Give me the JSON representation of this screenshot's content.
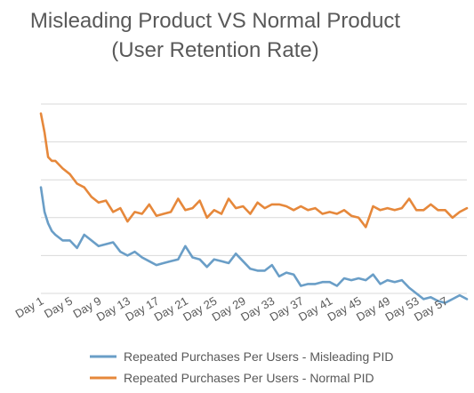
{
  "chart_data": {
    "type": "line",
    "title_lines": [
      "Misleading Product VS Normal Product",
      "(User Retention Rate)"
    ],
    "xlabel": "",
    "ylabel": "",
    "x_tick_labels": [
      "Day 1",
      "Day 5",
      "Day 9",
      "Day 13",
      "Day 17",
      "Day 21",
      "Day 25",
      "Day 29",
      "Day 33",
      "Day 37",
      "Day 41",
      "Day 45",
      "Day 49",
      "Day 53",
      "Day 57"
    ],
    "x_tick_days": [
      1,
      5,
      9,
      13,
      17,
      21,
      25,
      29,
      33,
      37,
      41,
      45,
      49,
      53,
      57
    ],
    "x_range": [
      1,
      60
    ],
    "ylim": [
      0,
      100
    ],
    "gridlines": [
      0,
      20,
      40,
      60,
      80,
      100
    ],
    "y_tick_labels_shown": false,
    "legend_position": "bottom",
    "series": [
      {
        "name": "Repeated Purchases Per Users - Misleading PID",
        "color": "#6a9ec7",
        "x": [
          1,
          1.5,
          2,
          2.5,
          3,
          4,
          5,
          6,
          7,
          8,
          9,
          10,
          11,
          12,
          13,
          14,
          15,
          16,
          17,
          18,
          19,
          20,
          21,
          22,
          23,
          24,
          25,
          26,
          27,
          28,
          29,
          30,
          31,
          32,
          33,
          34,
          35,
          36,
          37,
          38,
          39,
          40,
          41,
          42,
          43,
          44,
          45,
          46,
          47,
          48,
          49,
          50,
          51,
          52,
          53,
          54,
          55,
          56,
          57,
          58,
          59,
          60
        ],
        "y": [
          56,
          43,
          37,
          33,
          31,
          28,
          28,
          24,
          31,
          28,
          25,
          26,
          27,
          22,
          20,
          22,
          19,
          17,
          15,
          16,
          17,
          18,
          25,
          19,
          18,
          14,
          18,
          17,
          16,
          21,
          17,
          13,
          12,
          12,
          15,
          9,
          11,
          10,
          4,
          5,
          5,
          6,
          6,
          4,
          8,
          7,
          8,
          7,
          10,
          5,
          7,
          6,
          7,
          3,
          0,
          -3,
          -2,
          -4,
          -5,
          -3,
          -1,
          -3
        ]
      },
      {
        "name": "Repeated Purchases Per Users - Normal PID",
        "color": "#e6883b",
        "x": [
          1,
          1.5,
          2,
          2.5,
          3,
          4,
          5,
          6,
          7,
          8,
          9,
          10,
          11,
          12,
          13,
          14,
          15,
          16,
          17,
          18,
          19,
          20,
          21,
          22,
          23,
          24,
          25,
          26,
          27,
          28,
          29,
          30,
          31,
          32,
          33,
          34,
          35,
          36,
          37,
          38,
          39,
          40,
          41,
          42,
          43,
          44,
          45,
          46,
          47,
          48,
          49,
          50,
          51,
          52,
          53,
          54,
          55,
          56,
          57,
          58,
          59,
          60
        ],
        "y": [
          95,
          85,
          72,
          70,
          70,
          66,
          63,
          58,
          56,
          51,
          48,
          49,
          43,
          45,
          38,
          43,
          42,
          47,
          41,
          42,
          43,
          50,
          44,
          45,
          49,
          40,
          44,
          42,
          50,
          45,
          46,
          42,
          48,
          45,
          47,
          47,
          46,
          44,
          46,
          44,
          45,
          42,
          43,
          42,
          44,
          41,
          40,
          35,
          46,
          44,
          45,
          44,
          45,
          50,
          44,
          44,
          47,
          44,
          44,
          40,
          43,
          45
        ]
      }
    ]
  }
}
